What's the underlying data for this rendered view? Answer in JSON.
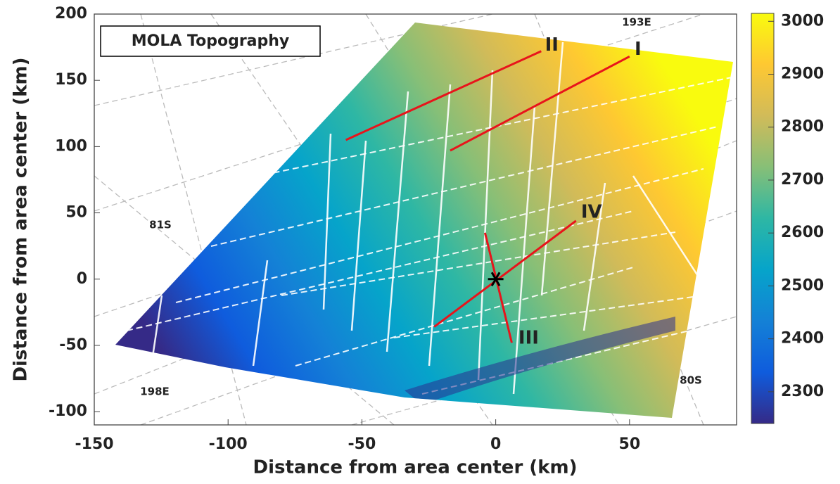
{
  "chart_data": {
    "type": "map",
    "title": "MOLA Topography",
    "xlabel": "Distance from area center (km)",
    "ylabel": "Distance from area center (km)",
    "xlim": [
      -150,
      90
    ],
    "ylim": [
      -110,
      200
    ],
    "xticks": [
      -150,
      -100,
      -50,
      0,
      50
    ],
    "yticks": [
      -100,
      -50,
      0,
      50,
      100,
      150,
      200
    ],
    "colorbar": {
      "lim": [
        2240,
        3015
      ],
      "ticks": [
        2300,
        2400,
        2500,
        2600,
        2700,
        2800,
        2900,
        3000
      ],
      "colors": [
        "#352a87",
        "#0f5cdd",
        "#1481d6",
        "#06a4ca",
        "#2eb7a4",
        "#87bf77",
        "#d1bb59",
        "#fec832",
        "#f9fb0e"
      ]
    },
    "profiles": [
      {
        "name": "I",
        "color": "#e8141b",
        "x": [
          -17,
          50
        ],
        "y": [
          97,
          168
        ]
      },
      {
        "name": "II",
        "color": "#e8141b",
        "x": [
          -56,
          17
        ],
        "y": [
          105,
          172
        ]
      },
      {
        "name": "III",
        "color": "#e8141b",
        "x": [
          -4,
          6
        ],
        "y": [
          35,
          -48
        ]
      },
      {
        "name": "IV",
        "color": "#e8141b",
        "x": [
          -23,
          30
        ],
        "y": [
          -36,
          44
        ]
      }
    ],
    "center": {
      "x": 0,
      "y": 0
    },
    "grid_labels": [
      "193E",
      "81S",
      "198E",
      "80S"
    ]
  }
}
